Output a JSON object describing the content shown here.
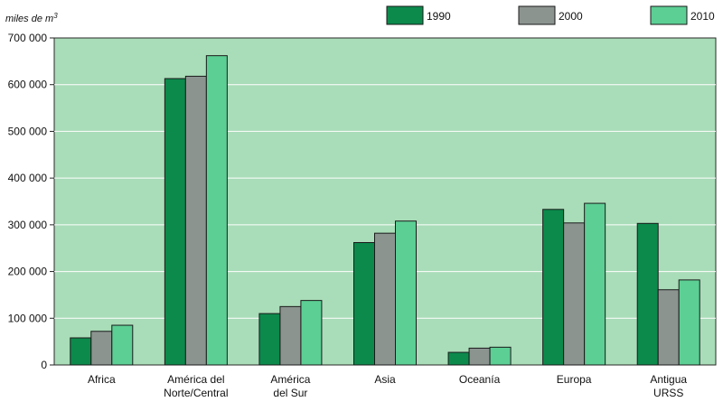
{
  "chart_data": {
    "type": "bar",
    "unit_label": "miles de m",
    "unit_superscript": "3",
    "categories": [
      [
        "Africa"
      ],
      [
        "América del",
        "Norte/Central"
      ],
      [
        "América",
        "del Sur"
      ],
      [
        "Asia"
      ],
      [
        "Oceanía"
      ],
      [
        "Europa"
      ],
      [
        "Antigua",
        "URSS"
      ]
    ],
    "series": [
      {
        "name": "1990",
        "color": "#0b8a4c",
        "values": [
          58000,
          613000,
          110000,
          262000,
          27000,
          333000,
          303000
        ]
      },
      {
        "name": "2000",
        "color": "#8c9490",
        "values": [
          72000,
          618000,
          125000,
          282000,
          36000,
          304000,
          161000
        ]
      },
      {
        "name": "2010",
        "color": "#5ccf94",
        "values": [
          85000,
          662000,
          138000,
          308000,
          38000,
          346000,
          182000
        ]
      }
    ],
    "ylim": [
      0,
      700000
    ],
    "yticks": [
      0,
      100000,
      200000,
      300000,
      400000,
      500000,
      600000,
      700000
    ],
    "ytick_labels": [
      "0",
      "100 000",
      "200 000",
      "300 000",
      "400 000",
      "500 000",
      "600 000",
      "700 000"
    ],
    "grid": true,
    "legend_position": "top-right",
    "colors": {
      "plot_background": "#a9dcb8",
      "grid": "#ffffff"
    }
  }
}
